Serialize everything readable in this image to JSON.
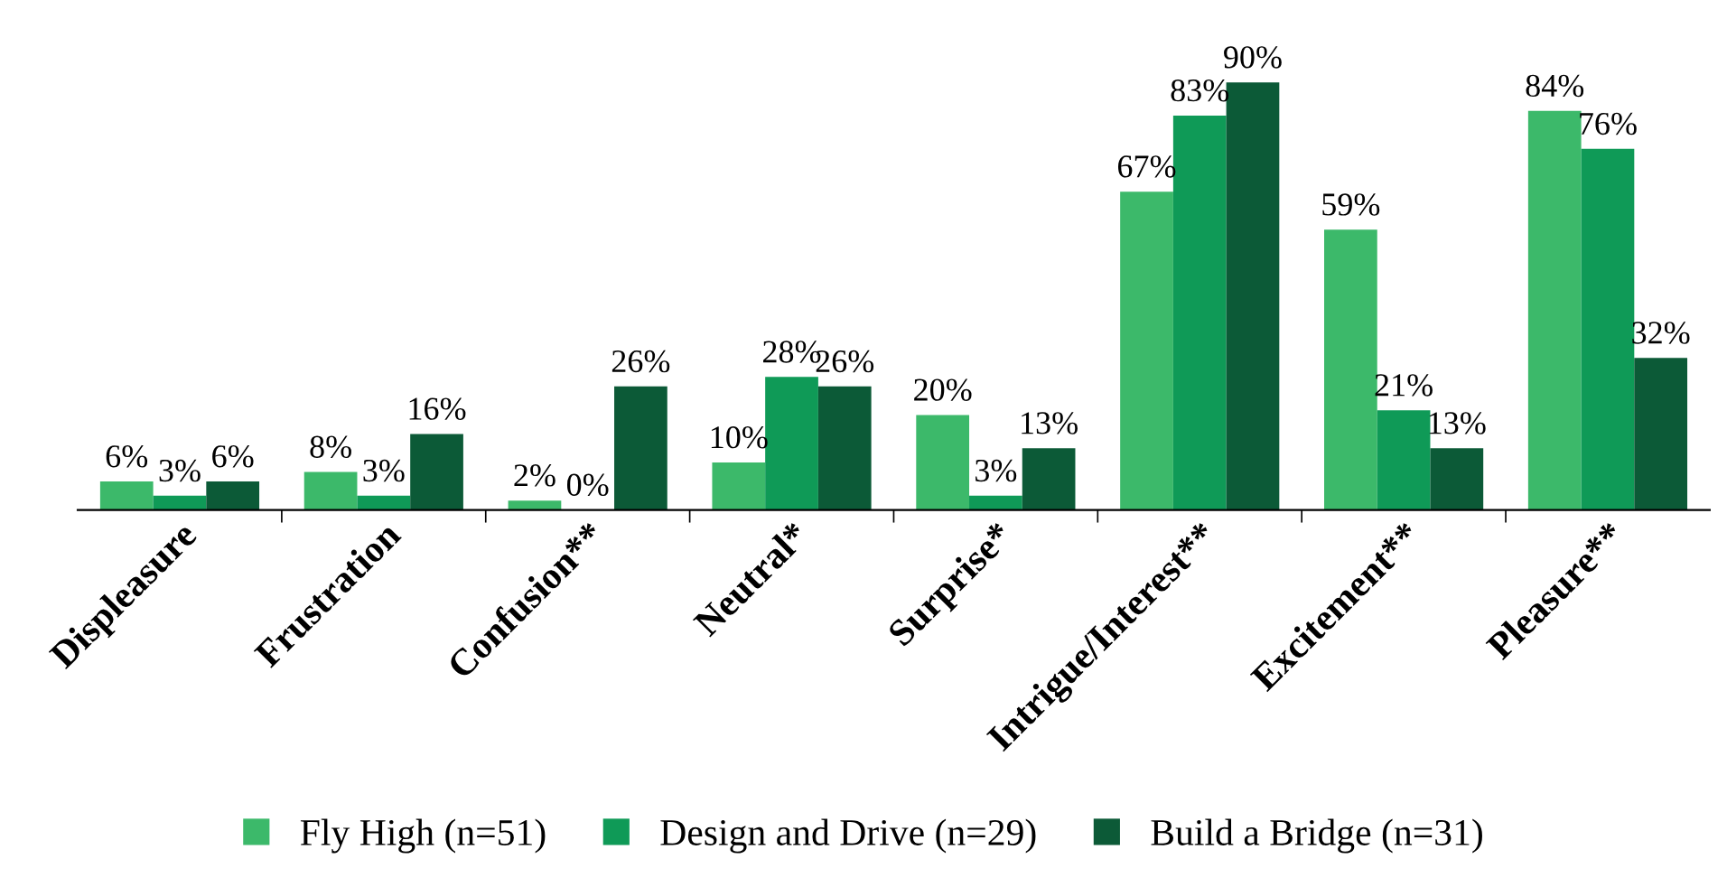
{
  "chart_data": {
    "type": "bar",
    "categories": [
      "Displeasure",
      "Frustration",
      "Confusion**",
      "Neutral*",
      "Surprise*",
      "Intrigue/Interest**",
      "Excitement**",
      "Pleasure**"
    ],
    "series": [
      {
        "name": "Fly High (n=51)",
        "color": "#3cb96a",
        "values": [
          6,
          8,
          2,
          10,
          20,
          67,
          59,
          84
        ],
        "value_labels": [
          "6%",
          "8%",
          "2%",
          "10%",
          "20%",
          "67%",
          "59%",
          "84%"
        ]
      },
      {
        "name": "Design and Drive (n=29)",
        "color": "#0f9a57",
        "values": [
          3,
          3,
          0,
          28,
          3,
          83,
          21,
          76
        ],
        "value_labels": [
          "3%",
          "3%",
          "0%",
          "28%",
          "3%",
          "83%",
          "21%",
          "76%"
        ]
      },
      {
        "name": "Build a Bridge (n=31)",
        "color": "#0c5a37",
        "values": [
          6,
          16,
          26,
          26,
          13,
          90,
          13,
          32
        ],
        "value_labels": [
          "6%",
          "16%",
          "26%",
          "26%",
          "13%",
          "90%",
          "13%",
          "32%"
        ]
      }
    ],
    "legend": "bottom",
    "grid": false,
    "tick_labels": "x"
  }
}
